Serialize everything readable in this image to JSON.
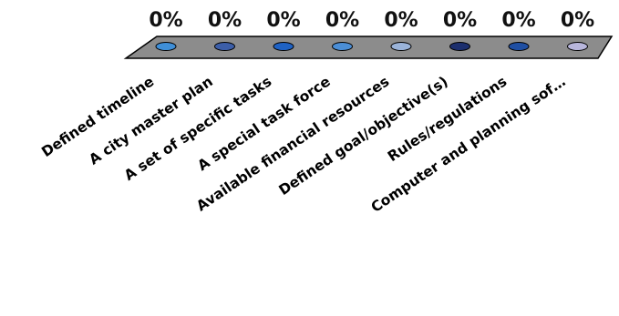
{
  "chart_data": {
    "type": "bar",
    "categories": [
      "Defined timeline",
      "A city master plan",
      "A set of specific tasks",
      "A special task force",
      "Available financial resources",
      "Defined goal/objective(s)",
      "Rules/regulations",
      "Computer and planning sof…"
    ],
    "values": [
      0,
      0,
      0,
      0,
      0,
      0,
      0,
      0
    ],
    "value_labels": [
      "0%",
      "0%",
      "0%",
      "0%",
      "0%",
      "0%",
      "0%",
      "0%"
    ],
    "title": "",
    "xlabel": "",
    "ylabel": "",
    "ylim": [
      0,
      100
    ],
    "grid": false,
    "legend": "none",
    "bar_colors": [
      "#3f8fd8",
      "#3c5ea8",
      "#1f62c4",
      "#4b8ed6",
      "#9ab3d9",
      "#1c2f6e",
      "#1f4fa3",
      "#b8b6dc"
    ],
    "floor_color": "#8c8c8c"
  }
}
